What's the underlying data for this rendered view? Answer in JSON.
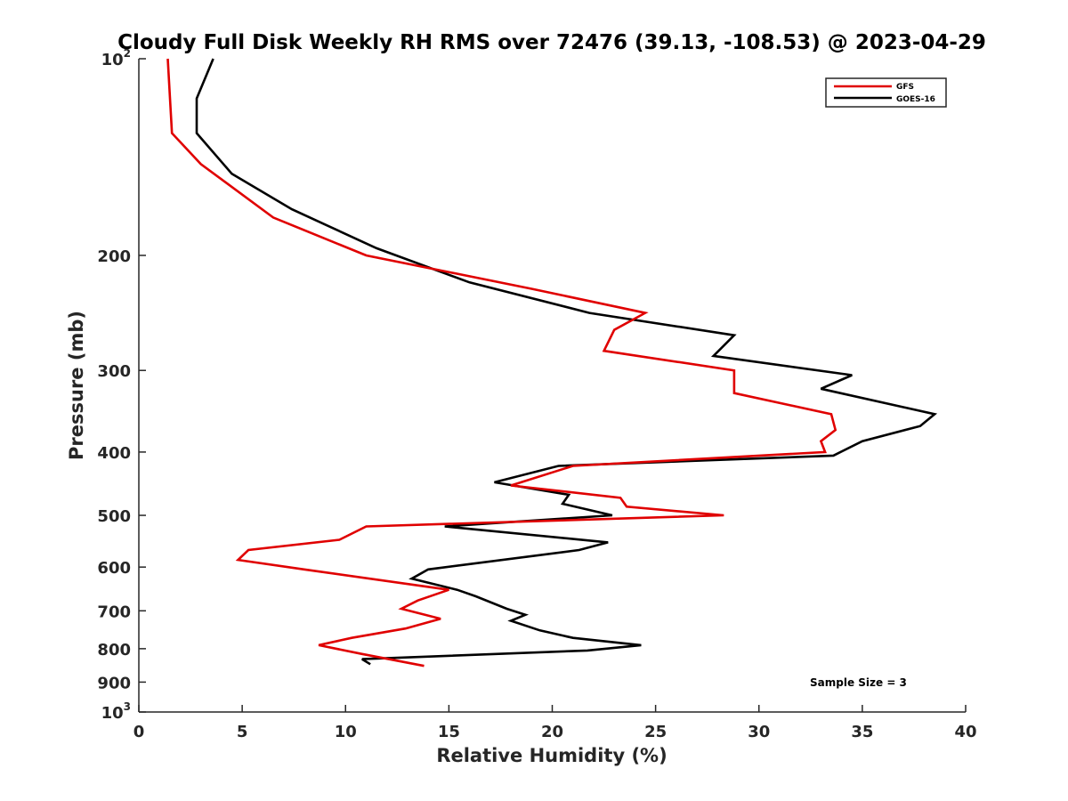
{
  "chart_data": {
    "type": "line",
    "orientation": "vertical-profile",
    "title": "Cloudy Full Disk Weekly RH RMS over 72476 (39.13, -108.53) @ 2023-04-29",
    "xlabel": "Relative Humidity (%)",
    "ylabel": "Pressure (mb)",
    "xlim": [
      0,
      40
    ],
    "ylim": [
      100,
      1000
    ],
    "y_scale": "log",
    "y_reversed": true,
    "grid": false,
    "legend_position": "top-right",
    "annotation": "Sample Size = 3",
    "x_ticks": [
      "0",
      "5",
      "10",
      "15",
      "20",
      "25",
      "30",
      "35",
      "40"
    ],
    "x_tick_values": [
      0,
      5,
      10,
      15,
      20,
      25,
      30,
      35,
      40
    ],
    "y_ticks": [
      {
        "value": 100,
        "base": "10",
        "exp": "2"
      },
      {
        "value": 200,
        "base": "200",
        "exp": ""
      },
      {
        "value": 300,
        "base": "300",
        "exp": ""
      },
      {
        "value": 400,
        "base": "400",
        "exp": ""
      },
      {
        "value": 500,
        "base": "500",
        "exp": ""
      },
      {
        "value": 600,
        "base": "600",
        "exp": ""
      },
      {
        "value": 700,
        "base": "700",
        "exp": ""
      },
      {
        "value": 800,
        "base": "800",
        "exp": ""
      },
      {
        "value": 900,
        "base": "900",
        "exp": ""
      },
      {
        "value": 1000,
        "base": "10",
        "exp": "3"
      }
    ],
    "series": [
      {
        "name": "GFS",
        "color": "#e00000",
        "points": [
          {
            "x": 1.4,
            "y": 100
          },
          {
            "x": 1.6,
            "y": 130
          },
          {
            "x": 3.0,
            "y": 145
          },
          {
            "x": 6.5,
            "y": 175
          },
          {
            "x": 11.0,
            "y": 200
          },
          {
            "x": 19.0,
            "y": 225
          },
          {
            "x": 24.5,
            "y": 245
          },
          {
            "x": 23.0,
            "y": 260
          },
          {
            "x": 22.5,
            "y": 280
          },
          {
            "x": 28.8,
            "y": 300
          },
          {
            "x": 28.8,
            "y": 325
          },
          {
            "x": 33.5,
            "y": 350
          },
          {
            "x": 33.7,
            "y": 370
          },
          {
            "x": 33.0,
            "y": 385
          },
          {
            "x": 33.2,
            "y": 400
          },
          {
            "x": 21.0,
            "y": 420
          },
          {
            "x": 18.0,
            "y": 450
          },
          {
            "x": 23.3,
            "y": 470
          },
          {
            "x": 23.6,
            "y": 485
          },
          {
            "x": 28.3,
            "y": 500
          },
          {
            "x": 11.0,
            "y": 520
          },
          {
            "x": 9.7,
            "y": 545
          },
          {
            "x": 5.3,
            "y": 565
          },
          {
            "x": 4.8,
            "y": 585
          },
          {
            "x": 8.0,
            "y": 605
          },
          {
            "x": 15.0,
            "y": 650
          },
          {
            "x": 13.5,
            "y": 675
          },
          {
            "x": 12.7,
            "y": 695
          },
          {
            "x": 14.6,
            "y": 720
          },
          {
            "x": 12.9,
            "y": 745
          },
          {
            "x": 10.3,
            "y": 770
          },
          {
            "x": 8.7,
            "y": 790
          },
          {
            "x": 10.8,
            "y": 815
          },
          {
            "x": 13.8,
            "y": 850
          }
        ]
      },
      {
        "name": "GOES-16",
        "color": "#000000",
        "points": [
          {
            "x": 3.6,
            "y": 100
          },
          {
            "x": 2.8,
            "y": 115
          },
          {
            "x": 2.8,
            "y": 130
          },
          {
            "x": 4.5,
            "y": 150
          },
          {
            "x": 7.4,
            "y": 170
          },
          {
            "x": 11.5,
            "y": 195
          },
          {
            "x": 16.0,
            "y": 220
          },
          {
            "x": 21.8,
            "y": 245
          },
          {
            "x": 28.8,
            "y": 265
          },
          {
            "x": 27.8,
            "y": 285
          },
          {
            "x": 34.5,
            "y": 305
          },
          {
            "x": 33.0,
            "y": 320
          },
          {
            "x": 38.5,
            "y": 350
          },
          {
            "x": 37.8,
            "y": 365
          },
          {
            "x": 35.0,
            "y": 385
          },
          {
            "x": 33.6,
            "y": 405
          },
          {
            "x": 20.3,
            "y": 420
          },
          {
            "x": 17.2,
            "y": 445
          },
          {
            "x": 20.8,
            "y": 465
          },
          {
            "x": 20.5,
            "y": 480
          },
          {
            "x": 22.9,
            "y": 500
          },
          {
            "x": 14.8,
            "y": 520
          },
          {
            "x": 22.7,
            "y": 550
          },
          {
            "x": 21.3,
            "y": 565
          },
          {
            "x": 14.0,
            "y": 605
          },
          {
            "x": 13.2,
            "y": 625
          },
          {
            "x": 15.4,
            "y": 650
          },
          {
            "x": 16.3,
            "y": 665
          },
          {
            "x": 17.8,
            "y": 695
          },
          {
            "x": 18.7,
            "y": 710
          },
          {
            "x": 18.0,
            "y": 725
          },
          {
            "x": 19.4,
            "y": 750
          },
          {
            "x": 21.0,
            "y": 770
          },
          {
            "x": 24.3,
            "y": 790
          },
          {
            "x": 21.7,
            "y": 805
          },
          {
            "x": 10.8,
            "y": 830
          },
          {
            "x": 11.2,
            "y": 845
          }
        ]
      }
    ]
  }
}
